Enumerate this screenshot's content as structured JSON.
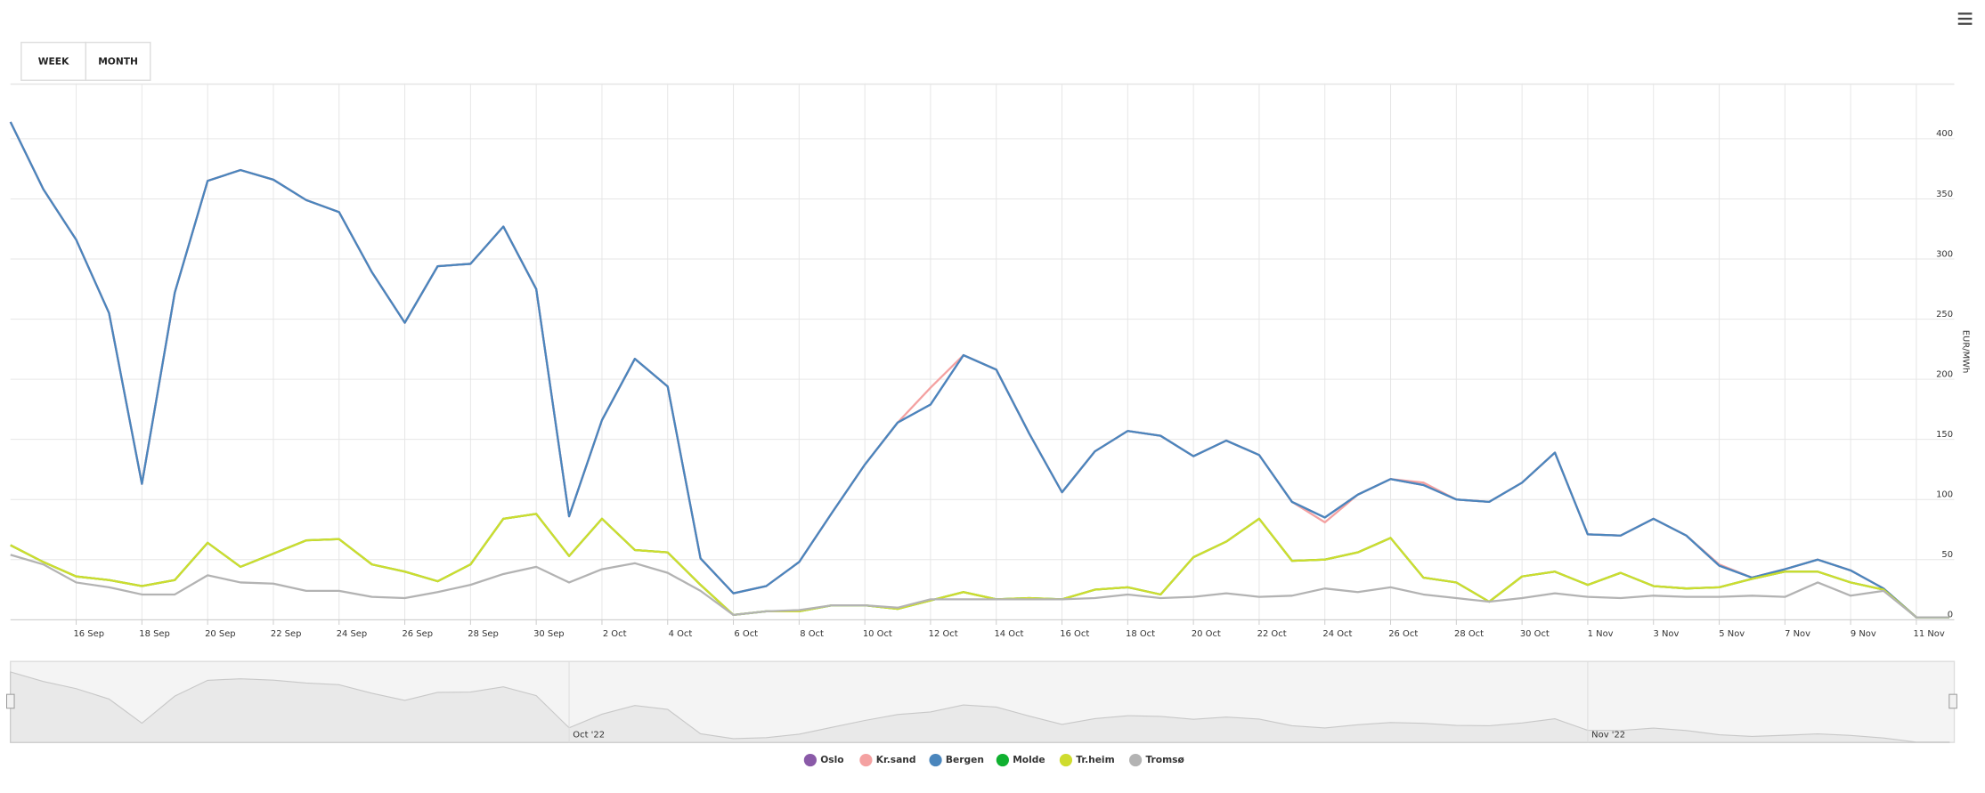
{
  "buttons": [
    "WEEK",
    "MONTH"
  ],
  "chart_data": {
    "type": "line",
    "y_label": "EUR/MWh",
    "categories": [
      null,
      null,
      "16 Sep",
      null,
      "18 Sep",
      null,
      "20 Sep",
      null,
      "22 Sep",
      null,
      "24 Sep",
      null,
      "26 Sep",
      null,
      "28 Sep",
      null,
      "30 Sep",
      null,
      "2 Oct",
      null,
      "4 Oct",
      null,
      "6 Oct",
      null,
      "8 Oct",
      null,
      "10 Oct",
      null,
      "12 Oct",
      null,
      "14 Oct",
      null,
      "16 Oct",
      null,
      "18 Oct",
      null,
      "20 Oct",
      null,
      "22 Oct",
      null,
      "24 Oct",
      null,
      "26 Oct",
      null,
      "28 Oct",
      null,
      "30 Oct",
      null,
      "1 Nov",
      null,
      "3 Nov",
      null,
      "5 Nov",
      null,
      "7 Nov",
      null,
      "9 Nov",
      null,
      "11 Nov",
      null
    ],
    "series": [
      {
        "name": "Oslo",
        "color": "#8a5aa8",
        "values": [
          414,
          358,
          316,
          255,
          113,
          272,
          365,
          374,
          366,
          349,
          339,
          289,
          247,
          294,
          296,
          327,
          275,
          86,
          166,
          217,
          194,
          51,
          22,
          28,
          48,
          89,
          129,
          164,
          179,
          220,
          208,
          155,
          106,
          140,
          157,
          153,
          136,
          149,
          137,
          98,
          85,
          104,
          117,
          112,
          100,
          98,
          114,
          139,
          71,
          70,
          84,
          70,
          45,
          35,
          42,
          50,
          41,
          26,
          2,
          2
        ]
      },
      {
        "name": "Kr.sand",
        "color": "#f4a1a1",
        "values": [
          414,
          358,
          316,
          255,
          113,
          272,
          365,
          374,
          366,
          349,
          339,
          289,
          247,
          294,
          296,
          327,
          275,
          86,
          166,
          217,
          194,
          51,
          22,
          28,
          48,
          89,
          129,
          164,
          193,
          220,
          208,
          155,
          106,
          140,
          157,
          153,
          136,
          149,
          137,
          98,
          81,
          104,
          117,
          114,
          100,
          98,
          114,
          139,
          71,
          70,
          84,
          70,
          46,
          35,
          42,
          50,
          41,
          26,
          2,
          2
        ]
      },
      {
        "name": "Bergen",
        "color": "#4a86bd",
        "values": [
          414,
          358,
          316,
          255,
          113,
          272,
          365,
          374,
          366,
          349,
          339,
          289,
          247,
          294,
          296,
          327,
          275,
          86,
          166,
          217,
          194,
          51,
          22,
          28,
          48,
          89,
          129,
          164,
          179,
          220,
          208,
          155,
          106,
          140,
          157,
          153,
          136,
          149,
          137,
          98,
          85,
          104,
          117,
          112,
          100,
          98,
          114,
          139,
          71,
          70,
          84,
          70,
          45,
          35,
          42,
          50,
          41,
          26,
          2,
          2
        ]
      },
      {
        "name": "Molde",
        "color": "#10b030",
        "values": [
          62,
          48,
          36,
          33,
          28,
          33,
          64,
          44,
          55,
          66,
          67,
          46,
          40,
          32,
          46,
          84,
          88,
          53,
          84,
          58,
          56,
          29,
          4,
          7,
          7,
          12,
          12,
          9,
          16,
          23,
          17,
          18,
          17,
          25,
          27,
          21,
          52,
          65,
          84,
          49,
          50,
          56,
          68,
          35,
          31,
          15,
          36,
          40,
          29,
          39,
          28,
          26,
          27,
          34,
          40,
          40,
          31,
          25,
          2,
          2
        ]
      },
      {
        "name": "Tr.heim",
        "color": "#cfdc2e",
        "values": [
          62,
          48,
          36,
          33,
          28,
          33,
          64,
          44,
          55,
          66,
          67,
          46,
          40,
          32,
          46,
          84,
          88,
          53,
          84,
          58,
          56,
          29,
          4,
          7,
          7,
          12,
          12,
          9,
          16,
          23,
          17,
          18,
          17,
          25,
          27,
          21,
          52,
          65,
          84,
          49,
          50,
          56,
          68,
          35,
          31,
          15,
          36,
          40,
          29,
          39,
          28,
          26,
          27,
          34,
          40,
          40,
          31,
          25,
          2,
          2
        ]
      },
      {
        "name": "Tromsø",
        "color": "#b3b3b3",
        "values": [
          54,
          46,
          31,
          27,
          21,
          21,
          37,
          31,
          30,
          24,
          24,
          19,
          18,
          23,
          29,
          38,
          44,
          31,
          42,
          47,
          39,
          24,
          4,
          7,
          8,
          12,
          12,
          10,
          17,
          17,
          17,
          17,
          17,
          18,
          21,
          18,
          19,
          22,
          19,
          20,
          26,
          23,
          27,
          21,
          18,
          15,
          18,
          22,
          19,
          18,
          20,
          19,
          19,
          20,
          19,
          31,
          20,
          24,
          2,
          2
        ]
      }
    ],
    "ylim": [
      0,
      446
    ],
    "yticks": [
      0,
      50,
      100,
      150,
      200,
      250,
      300,
      350,
      400
    ],
    "grid": true,
    "legend": "bottom"
  },
  "navigator": {
    "labels": [
      "Oct '22",
      "Nov '22"
    ]
  }
}
